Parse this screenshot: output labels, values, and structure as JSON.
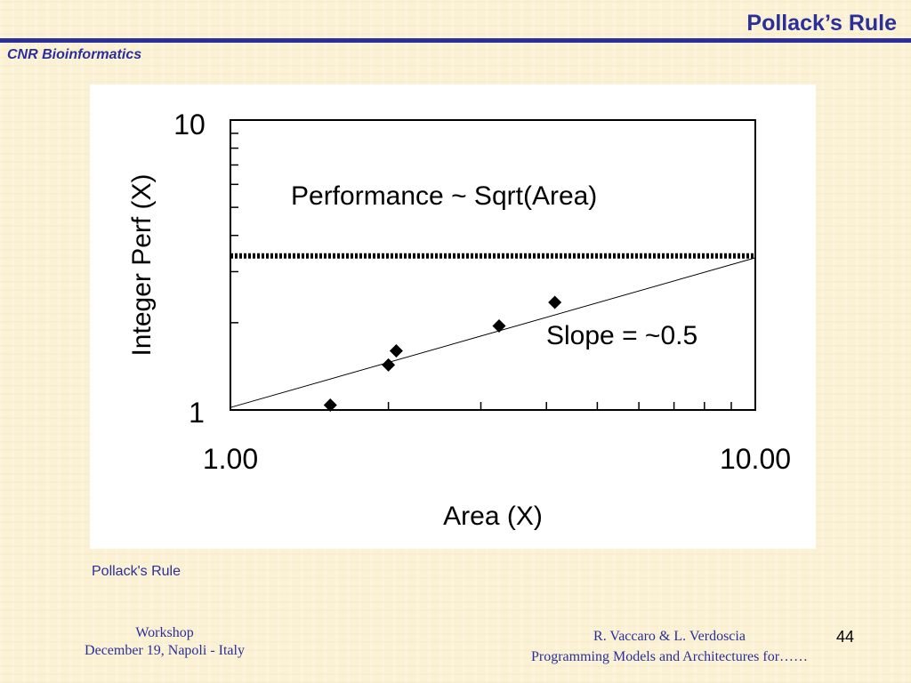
{
  "header": {
    "title": "Pollack’s Rule",
    "org": "CNR Bioinformatics"
  },
  "figure": {
    "caption": "Pollack's Rule"
  },
  "footer": {
    "left_line1": "Workshop",
    "left_line2": "December 19, Napoli - Italy",
    "right_line1": "R. Vaccaro & L. Verdoscia",
    "right_line2": "Programming Models and Architectures for……",
    "page_number": "44"
  },
  "colors": {
    "brand": "#2a2f9a",
    "background": "#fbf2d6",
    "chart_ink": "#000000"
  },
  "chart_data": {
    "type": "scatter",
    "xlabel": "Area (X)",
    "ylabel": "Integer Perf (X)",
    "x_scale": "log",
    "y_scale": "log",
    "xlim": [
      1,
      10
    ],
    "ylim": [
      1,
      10
    ],
    "x_tick_labels": [
      "1.00",
      "10.00"
    ],
    "y_tick_labels": [
      "1",
      "10"
    ],
    "series": [
      {
        "x": [
          1.55,
          2.0,
          2.07,
          3.25,
          4.15
        ],
        "y": [
          1.04,
          1.43,
          1.6,
          1.95,
          2.35
        ]
      }
    ],
    "fit_line": {
      "x": [
        1,
        10
      ],
      "y": [
        1.02,
        3.35
      ]
    },
    "reference_line": {
      "y": 3.4,
      "style": "dotted"
    },
    "annotations": [
      {
        "text": "Performance ~ Sqrt(Area)"
      },
      {
        "text": "Slope = ~0.5"
      }
    ],
    "grid": false,
    "legend": false
  }
}
